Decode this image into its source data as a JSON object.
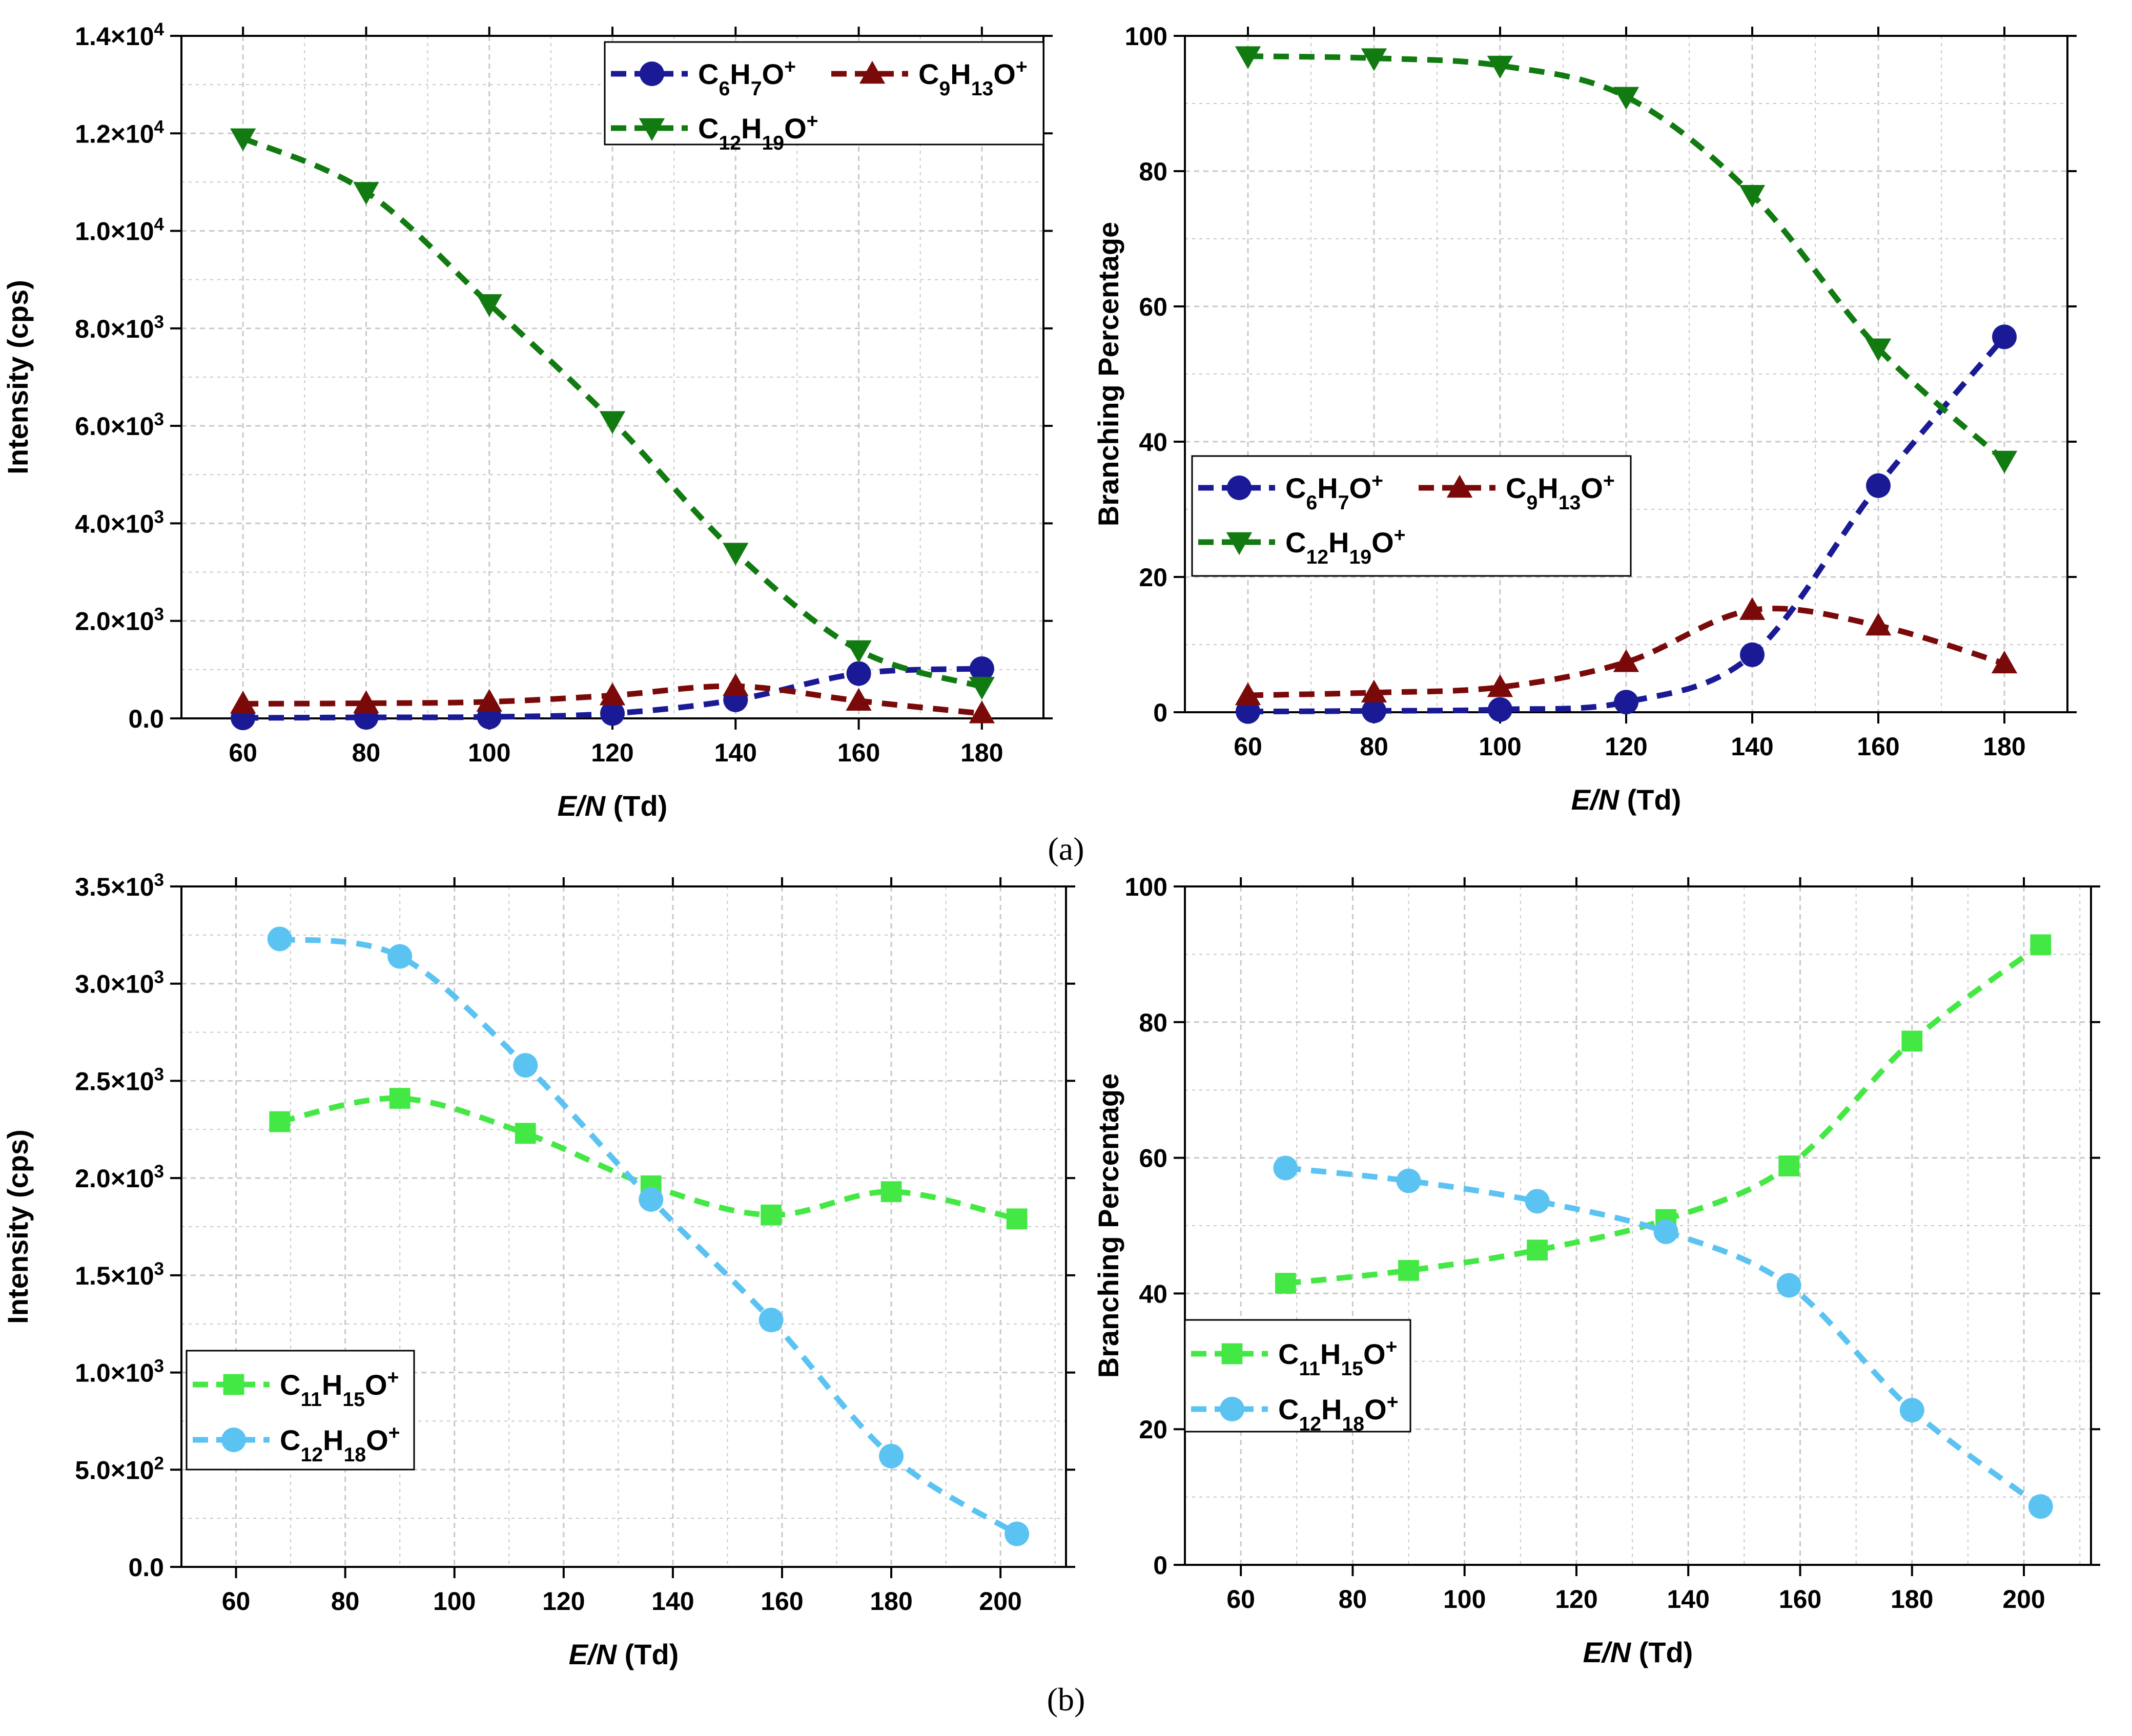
{
  "colors": {
    "c6h7o": "#1a1a96",
    "c9h13o": "#7a0a0a",
    "c12h19o": "#117a11",
    "c11h15o": "#44e844",
    "c12h18o": "#5bc3f2",
    "grid": "#c8c8c8"
  },
  "panel_labels": {
    "a": "(a)",
    "b": "(b)"
  },
  "chart_data": [
    {
      "id": "a-left",
      "type": "line",
      "xlabel": "E/N (Td)",
      "xlabel_italic": "E/N",
      "xlabel_unit": " (Td)",
      "ylabel": "Intensity (cps)",
      "xlim": [
        50,
        190
      ],
      "ylim": [
        0,
        14000
      ],
      "xticks": [
        60,
        80,
        100,
        120,
        140,
        160,
        180
      ],
      "xtick_labels": [
        "60",
        "80",
        "100",
        "120",
        "140",
        "160",
        "180"
      ],
      "yticks": [
        0,
        2000,
        4000,
        6000,
        8000,
        10000,
        12000,
        14000
      ],
      "ytick_labels": [
        {
          "m": "0.0",
          "e": ""
        },
        {
          "m": "2.0×10",
          "e": "3"
        },
        {
          "m": "4.0×10",
          "e": "3"
        },
        {
          "m": "6.0×10",
          "e": "3"
        },
        {
          "m": "8.0×10",
          "e": "3"
        },
        {
          "m": "1.0×10",
          "e": "4"
        },
        {
          "m": "1.2×10",
          "e": "4"
        },
        {
          "m": "1.4×10",
          "e": "4"
        }
      ],
      "legend_position": "top-right",
      "series": [
        {
          "key": "c6h7o",
          "name": "C6H7O+",
          "formula": [
            [
              "C",
              ""
            ],
            [
              "6",
              "sub"
            ],
            [
              "H",
              ""
            ],
            [
              "7",
              "sub"
            ],
            [
              "O",
              ""
            ],
            [
              "+",
              "sup"
            ]
          ],
          "marker": "circle",
          "x": [
            60,
            80,
            100,
            120,
            140,
            160,
            180
          ],
          "y": [
            10,
            20,
            30,
            100,
            380,
            920,
            1020
          ]
        },
        {
          "key": "c9h13o",
          "name": "C9H13O+",
          "formula": [
            [
              "C",
              ""
            ],
            [
              "9",
              "sub"
            ],
            [
              "H",
              ""
            ],
            [
              "13",
              "sub"
            ],
            [
              "O",
              ""
            ],
            [
              "+",
              "sup"
            ]
          ],
          "marker": "triangle-up",
          "x": [
            60,
            80,
            100,
            120,
            140,
            160,
            180
          ],
          "y": [
            300,
            310,
            340,
            470,
            660,
            360,
            100
          ]
        },
        {
          "key": "c12h19o",
          "name": "C12H19O+",
          "formula": [
            [
              "C",
              ""
            ],
            [
              "12",
              "sub"
            ],
            [
              "H",
              ""
            ],
            [
              "19",
              "sub"
            ],
            [
              "O",
              ""
            ],
            [
              "+",
              "sup"
            ]
          ],
          "marker": "triangle-down",
          "x": [
            60,
            80,
            100,
            120,
            140,
            160,
            180
          ],
          "y": [
            11900,
            10800,
            8500,
            6100,
            3400,
            1400,
            650
          ]
        }
      ]
    },
    {
      "id": "a-right",
      "type": "line",
      "xlabel": "E/N (Td)",
      "xlabel_italic": "E/N",
      "xlabel_unit": " (Td)",
      "ylabel": "Branching Percentage",
      "xlim": [
        50,
        190
      ],
      "ylim": [
        0,
        100
      ],
      "xticks": [
        60,
        80,
        100,
        120,
        140,
        160,
        180
      ],
      "xtick_labels": [
        "60",
        "80",
        "100",
        "120",
        "140",
        "160",
        "180"
      ],
      "yticks": [
        0,
        20,
        40,
        60,
        80,
        100
      ],
      "ytick_labels": [
        {
          "m": "0",
          "e": ""
        },
        {
          "m": "20",
          "e": ""
        },
        {
          "m": "40",
          "e": ""
        },
        {
          "m": "60",
          "e": ""
        },
        {
          "m": "80",
          "e": ""
        },
        {
          "m": "100",
          "e": ""
        }
      ],
      "legend_position": "center-left",
      "series": [
        {
          "key": "c6h7o",
          "name": "C6H7O+",
          "formula": [
            [
              "C",
              ""
            ],
            [
              "6",
              "sub"
            ],
            [
              "H",
              ""
            ],
            [
              "7",
              "sub"
            ],
            [
              "O",
              ""
            ],
            [
              "+",
              "sup"
            ]
          ],
          "marker": "circle",
          "x": [
            60,
            80,
            100,
            120,
            140,
            160,
            180
          ],
          "y": [
            0.1,
            0.2,
            0.4,
            1.5,
            8.5,
            33.5,
            55.5
          ]
        },
        {
          "key": "c9h13o",
          "name": "C9H13O+",
          "formula": [
            [
              "C",
              ""
            ],
            [
              "9",
              "sub"
            ],
            [
              "H",
              ""
            ],
            [
              "13",
              "sub"
            ],
            [
              "O",
              ""
            ],
            [
              "+",
              "sup"
            ]
          ],
          "marker": "triangle-up",
          "x": [
            60,
            80,
            100,
            120,
            140,
            160,
            180
          ],
          "y": [
            2.5,
            2.9,
            3.7,
            7.4,
            15.1,
            12.8,
            7.2
          ]
        },
        {
          "key": "c12h19o",
          "name": "C12H19O+",
          "formula": [
            [
              "C",
              ""
            ],
            [
              "12",
              "sub"
            ],
            [
              "H",
              ""
            ],
            [
              "19",
              "sub"
            ],
            [
              "O",
              ""
            ],
            [
              "+",
              "sup"
            ]
          ],
          "marker": "triangle-down",
          "x": [
            60,
            80,
            100,
            120,
            140,
            160,
            180
          ],
          "y": [
            97,
            96.7,
            95.6,
            91,
            76.5,
            53.8,
            37.2
          ]
        }
      ]
    },
    {
      "id": "b-left",
      "type": "line",
      "xlabel": "E/N (Td)",
      "xlabel_italic": "E/N",
      "xlabel_unit": " (Td)",
      "ylabel": "Intensity (cps)",
      "xlim": [
        50,
        212
      ],
      "ylim": [
        0,
        3500
      ],
      "xticks": [
        60,
        80,
        100,
        120,
        140,
        160,
        180,
        200
      ],
      "xtick_labels": [
        "60",
        "80",
        "100",
        "120",
        "140",
        "160",
        "180",
        "200"
      ],
      "yticks": [
        0,
        500,
        1000,
        1500,
        2000,
        2500,
        3000,
        3500
      ],
      "ytick_labels": [
        {
          "m": "0.0",
          "e": ""
        },
        {
          "m": "5.0×10",
          "e": "2"
        },
        {
          "m": "1.0×10",
          "e": "3"
        },
        {
          "m": "1.5×10",
          "e": "3"
        },
        {
          "m": "2.0×10",
          "e": "3"
        },
        {
          "m": "2.5×10",
          "e": "3"
        },
        {
          "m": "3.0×10",
          "e": "3"
        },
        {
          "m": "3.5×10",
          "e": "3"
        }
      ],
      "legend_position": "bottom-left",
      "series": [
        {
          "key": "c11h15o",
          "name": "C11H15O+",
          "formula": [
            [
              "C",
              ""
            ],
            [
              "11",
              "sub"
            ],
            [
              "H",
              ""
            ],
            [
              "15",
              "sub"
            ],
            [
              "O",
              ""
            ],
            [
              "+",
              "sup"
            ]
          ],
          "marker": "square",
          "x": [
            68,
            90,
            113,
            136,
            158,
            180,
            203
          ],
          "y": [
            2290,
            2410,
            2230,
            1960,
            1810,
            1930,
            1790
          ]
        },
        {
          "key": "c12h18o",
          "name": "C12H18O+",
          "formula": [
            [
              "C",
              ""
            ],
            [
              "12",
              "sub"
            ],
            [
              "H",
              ""
            ],
            [
              "18",
              "sub"
            ],
            [
              "O",
              ""
            ],
            [
              "+",
              "sup"
            ]
          ],
          "marker": "circle",
          "x": [
            68,
            90,
            113,
            136,
            158,
            180,
            203
          ],
          "y": [
            3230,
            3140,
            2580,
            1890,
            1270,
            570,
            170
          ]
        }
      ]
    },
    {
      "id": "b-right",
      "type": "line",
      "xlabel": "E/N (Td)",
      "xlabel_italic": "E/N",
      "xlabel_unit": " (Td)",
      "ylabel": "Branching Percentage",
      "xlim": [
        50,
        212
      ],
      "ylim": [
        0,
        100
      ],
      "xticks": [
        60,
        80,
        100,
        120,
        140,
        160,
        180,
        200
      ],
      "xtick_labels": [
        "60",
        "80",
        "100",
        "120",
        "140",
        "160",
        "180",
        "200"
      ],
      "yticks": [
        0,
        20,
        40,
        60,
        80,
        100
      ],
      "ytick_labels": [
        {
          "m": "0",
          "e": ""
        },
        {
          "m": "20",
          "e": ""
        },
        {
          "m": "40",
          "e": ""
        },
        {
          "m": "60",
          "e": ""
        },
        {
          "m": "80",
          "e": ""
        },
        {
          "m": "100",
          "e": ""
        }
      ],
      "legend_position": "center-left",
      "series": [
        {
          "key": "c11h15o",
          "name": "C11H15O+",
          "formula": [
            [
              "C",
              ""
            ],
            [
              "11",
              "sub"
            ],
            [
              "H",
              ""
            ],
            [
              "15",
              "sub"
            ],
            [
              "O",
              ""
            ],
            [
              "+",
              "sup"
            ]
          ],
          "marker": "square",
          "x": [
            68,
            90,
            113,
            136,
            158,
            180,
            203
          ],
          "y": [
            41.5,
            43.4,
            46.4,
            50.9,
            58.8,
            77.2,
            91.4
          ]
        },
        {
          "key": "c12h18o",
          "name": "C12H18O+",
          "formula": [
            [
              "C",
              ""
            ],
            [
              "12",
              "sub"
            ],
            [
              "H",
              ""
            ],
            [
              "18",
              "sub"
            ],
            [
              "O",
              ""
            ],
            [
              "+",
              "sup"
            ]
          ],
          "marker": "circle",
          "x": [
            68,
            90,
            113,
            136,
            158,
            180,
            203
          ],
          "y": [
            58.5,
            56.6,
            53.6,
            49.1,
            41.2,
            22.8,
            8.6
          ]
        }
      ]
    }
  ]
}
